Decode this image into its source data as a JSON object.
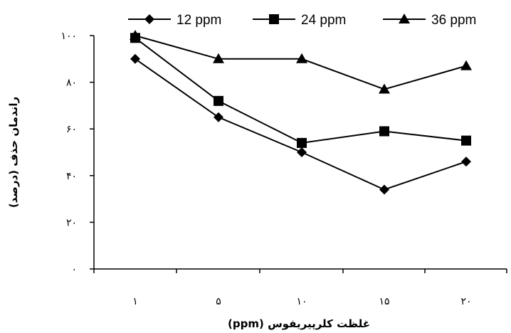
{
  "chart_data": {
    "type": "line",
    "categories": [
      "۱",
      "۵",
      "۱۰",
      "۱۵",
      "۲۰"
    ],
    "series": [
      {
        "name": "12 ppm",
        "marker": "diamond",
        "color": "#000000",
        "values": [
          90,
          65,
          50,
          34,
          46
        ]
      },
      {
        "name": "24 ppm",
        "marker": "square",
        "color": "#000000",
        "values": [
          99,
          72,
          54,
          59,
          55
        ]
      },
      {
        "name": "36 ppm",
        "marker": "triangle",
        "color": "#000000",
        "values": [
          100,
          90,
          90,
          77,
          87
        ]
      }
    ],
    "ylim": [
      0,
      100
    ],
    "yticks": [
      0,
      20,
      40,
      60,
      80,
      100
    ],
    "ytick_labels": [
      "۰",
      "۲۰",
      "۴۰",
      "۶۰",
      "۸۰",
      "۱۰۰"
    ],
    "xlabel": "غلظت کلرپیریفوس (ppm)",
    "ylabel": "راندمان حذف (درصد)",
    "legend_position": "top",
    "grid": false
  }
}
